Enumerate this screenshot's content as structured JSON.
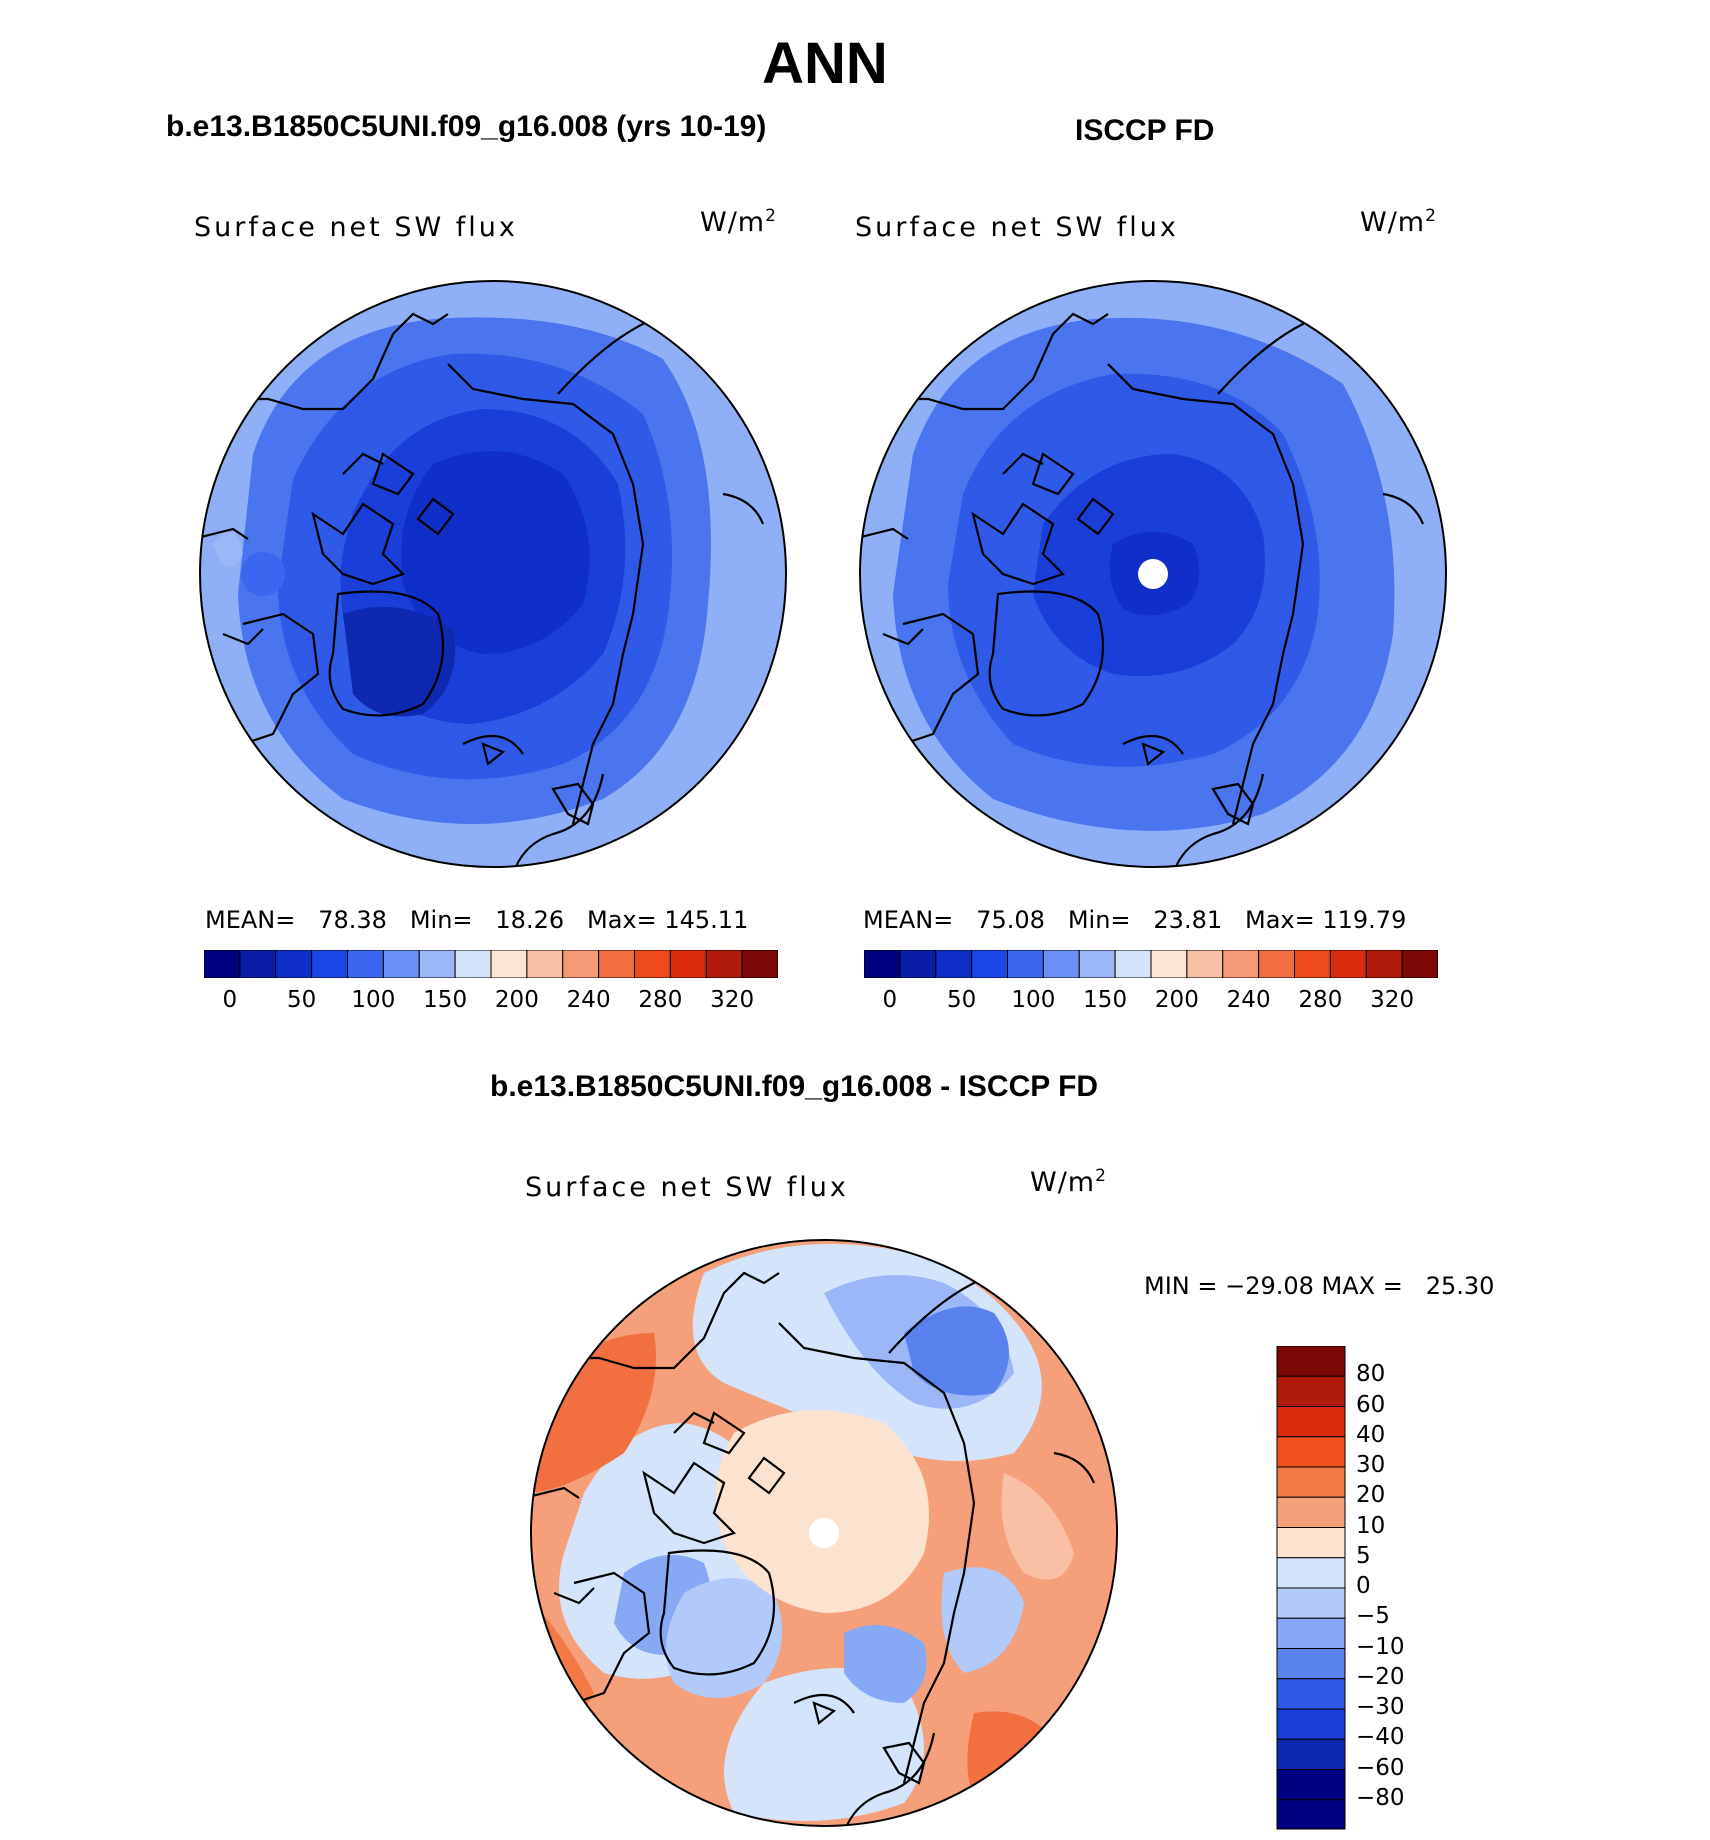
{
  "title": "ANN",
  "panels": [
    {
      "id": "model",
      "heading": "b.e13.B1850C5UNI.f09_g16.008 (yrs 10-19)",
      "variable": "Surface net SW flux",
      "units_base": "W/m",
      "units_exp": "2",
      "stats": "MEAN=   78.38   Min=   18.26   Max= 145.11",
      "mean": 78.38,
      "min": 18.26,
      "max": 145.11
    },
    {
      "id": "obs",
      "heading": "ISCCP FD",
      "variable": "Surface net SW flux",
      "units_base": "W/m",
      "units_exp": "2",
      "stats": "MEAN=   75.08   Min=   23.81   Max= 119.79",
      "mean": 75.08,
      "min": 23.81,
      "max": 119.79
    },
    {
      "id": "diff",
      "heading": "b.e13.B1850C5UNI.f09_g16.008 - ISCCP FD",
      "variable": "Surface net SW flux",
      "units_base": "W/m",
      "units_exp": "2",
      "stats": "MIN = −29.08 MAX =   25.30",
      "min": -29.08,
      "max": 25.3
    }
  ],
  "abs_colorbar": {
    "colors": [
      "#000080",
      "#0a1ca6",
      "#0f2fc8",
      "#1a46e6",
      "#3a66f0",
      "#6a90f5",
      "#9bb7f8",
      "#d3e4fb",
      "#fbe6d6",
      "#f9c0a6",
      "#f59a77",
      "#f2703f",
      "#ef4a1c",
      "#d92c0c",
      "#b01a0a",
      "#7c0808"
    ],
    "ticks": [
      "0",
      "50",
      "100",
      "150",
      "200",
      "240",
      "280",
      "320"
    ]
  },
  "diff_colorbar": {
    "colors": [
      "#7c0808",
      "#b01a0a",
      "#d92c0c",
      "#f2521f",
      "#f47a45",
      "#f6a07b",
      "#fbe3d0",
      "#d3e4fb",
      "#b1caf9",
      "#86a8f5",
      "#5a82ef",
      "#2f5ae8",
      "#1a3ed8",
      "#0f28b0",
      "#000080"
    ],
    "ticks": [
      "80",
      "60",
      "40",
      "30",
      "20",
      "10",
      "5",
      "0",
      "−5",
      "−10",
      "−20",
      "−30",
      "−40",
      "−60",
      "−80"
    ]
  }
}
